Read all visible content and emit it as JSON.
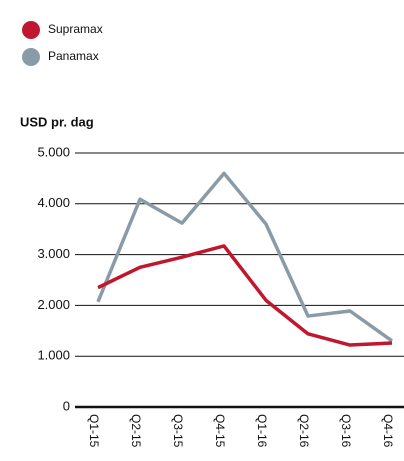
{
  "chart_data": {
    "type": "line",
    "y_axis_label": "USD pr. dag",
    "categories": [
      "Q1-15",
      "Q2-15",
      "Q3-15",
      "Q4-15",
      "Q1-16",
      "Q2-16",
      "Q3-16",
      "Q4-16"
    ],
    "series": [
      {
        "name": "Supramax",
        "color": "#c0172f",
        "values": [
          2350,
          2750,
          2950,
          3170,
          2100,
          1440,
          1220,
          1260
        ]
      },
      {
        "name": "Panamax",
        "color": "#8a9ba8",
        "values": [
          2070,
          4090,
          3620,
          4600,
          3600,
          1790,
          1890,
          1300
        ]
      }
    ],
    "ylim": [
      0,
      5000
    ],
    "yticks": [
      0,
      {
        "value": 1000,
        "label": "1.000"
      },
      {
        "value": 2000,
        "label": "2.000"
      },
      {
        "value": 3000,
        "label": "3.000"
      },
      {
        "value": 4000,
        "label": "4.000"
      },
      {
        "value": 5000,
        "label": "5.000"
      }
    ],
    "grid": true
  }
}
